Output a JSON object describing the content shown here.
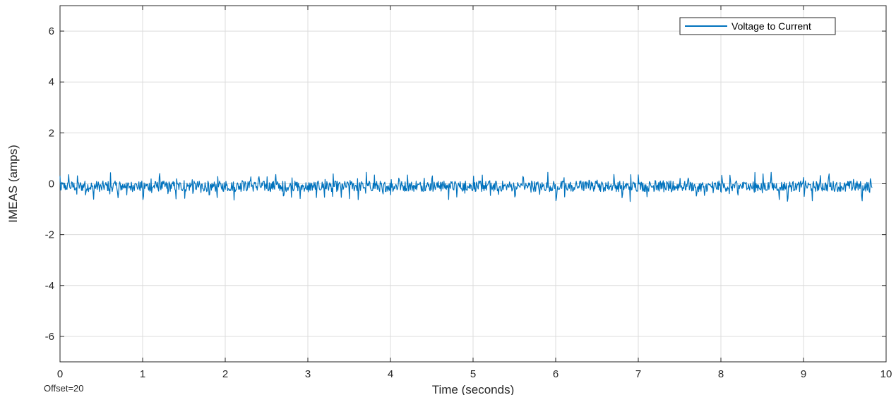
{
  "chart_data": {
    "type": "line",
    "xlabel": "Time (seconds)",
    "ylabel": "IMEAS (amps)",
    "offset_text": "Offset=20",
    "xlim": [
      0,
      10
    ],
    "ylim": [
      -7,
      7
    ],
    "x_ticks": [
      0,
      1,
      2,
      3,
      4,
      5,
      6,
      7,
      8,
      9,
      10
    ],
    "x_tick_labels": [
      "0",
      "1",
      "2",
      "3",
      "4",
      "5",
      "6",
      "7",
      "8",
      "9",
      "10"
    ],
    "y_ticks": [
      -6,
      -4,
      -2,
      0,
      2,
      4,
      6
    ],
    "y_tick_labels": [
      "-6",
      "-4",
      "-2",
      "0",
      "2",
      "4",
      "6"
    ],
    "grid": true,
    "legend_position": "top-right",
    "series": [
      {
        "name": "Voltage to Current",
        "color": "#0072BD",
        "signal": {
          "x_start": 0,
          "x_end": 9.83,
          "mean": -0.1,
          "approx_min": -0.7,
          "approx_max": 0.45,
          "periodic_spikes_per_second": 10
        }
      }
    ]
  }
}
